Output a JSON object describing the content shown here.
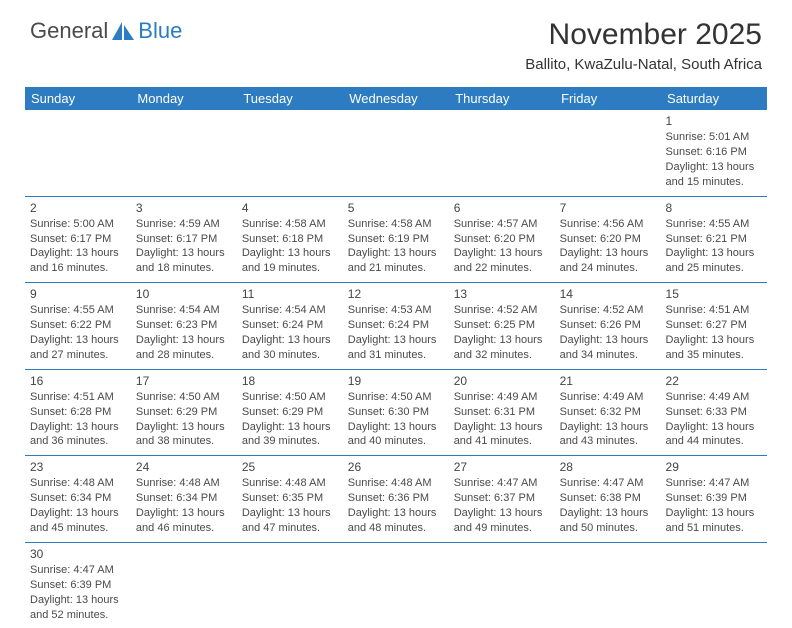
{
  "logo": {
    "word1": "General",
    "word2": "Blue",
    "color1": "#4a4a4a",
    "color2": "#2d7bc0",
    "sail_color": "#2d7bc0"
  },
  "title": "November 2025",
  "location": "Ballito, KwaZulu-Natal, South Africa",
  "colors": {
    "header_bg": "#2d7bc0",
    "header_fg": "#ffffff",
    "rule": "#2d7bc0",
    "text": "#4a4a4a",
    "bg": "#ffffff"
  },
  "day_names": [
    "Sunday",
    "Monday",
    "Tuesday",
    "Wednesday",
    "Thursday",
    "Friday",
    "Saturday"
  ],
  "weeks": [
    [
      null,
      null,
      null,
      null,
      null,
      null,
      {
        "n": 1,
        "sr": "5:01 AM",
        "ss": "6:16 PM",
        "dl": "13 hours and 15 minutes."
      }
    ],
    [
      {
        "n": 2,
        "sr": "5:00 AM",
        "ss": "6:17 PM",
        "dl": "13 hours and 16 minutes."
      },
      {
        "n": 3,
        "sr": "4:59 AM",
        "ss": "6:17 PM",
        "dl": "13 hours and 18 minutes."
      },
      {
        "n": 4,
        "sr": "4:58 AM",
        "ss": "6:18 PM",
        "dl": "13 hours and 19 minutes."
      },
      {
        "n": 5,
        "sr": "4:58 AM",
        "ss": "6:19 PM",
        "dl": "13 hours and 21 minutes."
      },
      {
        "n": 6,
        "sr": "4:57 AM",
        "ss": "6:20 PM",
        "dl": "13 hours and 22 minutes."
      },
      {
        "n": 7,
        "sr": "4:56 AM",
        "ss": "6:20 PM",
        "dl": "13 hours and 24 minutes."
      },
      {
        "n": 8,
        "sr": "4:55 AM",
        "ss": "6:21 PM",
        "dl": "13 hours and 25 minutes."
      }
    ],
    [
      {
        "n": 9,
        "sr": "4:55 AM",
        "ss": "6:22 PM",
        "dl": "13 hours and 27 minutes."
      },
      {
        "n": 10,
        "sr": "4:54 AM",
        "ss": "6:23 PM",
        "dl": "13 hours and 28 minutes."
      },
      {
        "n": 11,
        "sr": "4:54 AM",
        "ss": "6:24 PM",
        "dl": "13 hours and 30 minutes."
      },
      {
        "n": 12,
        "sr": "4:53 AM",
        "ss": "6:24 PM",
        "dl": "13 hours and 31 minutes."
      },
      {
        "n": 13,
        "sr": "4:52 AM",
        "ss": "6:25 PM",
        "dl": "13 hours and 32 minutes."
      },
      {
        "n": 14,
        "sr": "4:52 AM",
        "ss": "6:26 PM",
        "dl": "13 hours and 34 minutes."
      },
      {
        "n": 15,
        "sr": "4:51 AM",
        "ss": "6:27 PM",
        "dl": "13 hours and 35 minutes."
      }
    ],
    [
      {
        "n": 16,
        "sr": "4:51 AM",
        "ss": "6:28 PM",
        "dl": "13 hours and 36 minutes."
      },
      {
        "n": 17,
        "sr": "4:50 AM",
        "ss": "6:29 PM",
        "dl": "13 hours and 38 minutes."
      },
      {
        "n": 18,
        "sr": "4:50 AM",
        "ss": "6:29 PM",
        "dl": "13 hours and 39 minutes."
      },
      {
        "n": 19,
        "sr": "4:50 AM",
        "ss": "6:30 PM",
        "dl": "13 hours and 40 minutes."
      },
      {
        "n": 20,
        "sr": "4:49 AM",
        "ss": "6:31 PM",
        "dl": "13 hours and 41 minutes."
      },
      {
        "n": 21,
        "sr": "4:49 AM",
        "ss": "6:32 PM",
        "dl": "13 hours and 43 minutes."
      },
      {
        "n": 22,
        "sr": "4:49 AM",
        "ss": "6:33 PM",
        "dl": "13 hours and 44 minutes."
      }
    ],
    [
      {
        "n": 23,
        "sr": "4:48 AM",
        "ss": "6:34 PM",
        "dl": "13 hours and 45 minutes."
      },
      {
        "n": 24,
        "sr": "4:48 AM",
        "ss": "6:34 PM",
        "dl": "13 hours and 46 minutes."
      },
      {
        "n": 25,
        "sr": "4:48 AM",
        "ss": "6:35 PM",
        "dl": "13 hours and 47 minutes."
      },
      {
        "n": 26,
        "sr": "4:48 AM",
        "ss": "6:36 PM",
        "dl": "13 hours and 48 minutes."
      },
      {
        "n": 27,
        "sr": "4:47 AM",
        "ss": "6:37 PM",
        "dl": "13 hours and 49 minutes."
      },
      {
        "n": 28,
        "sr": "4:47 AM",
        "ss": "6:38 PM",
        "dl": "13 hours and 50 minutes."
      },
      {
        "n": 29,
        "sr": "4:47 AM",
        "ss": "6:39 PM",
        "dl": "13 hours and 51 minutes."
      }
    ],
    [
      {
        "n": 30,
        "sr": "4:47 AM",
        "ss": "6:39 PM",
        "dl": "13 hours and 52 minutes."
      },
      null,
      null,
      null,
      null,
      null,
      null
    ]
  ]
}
